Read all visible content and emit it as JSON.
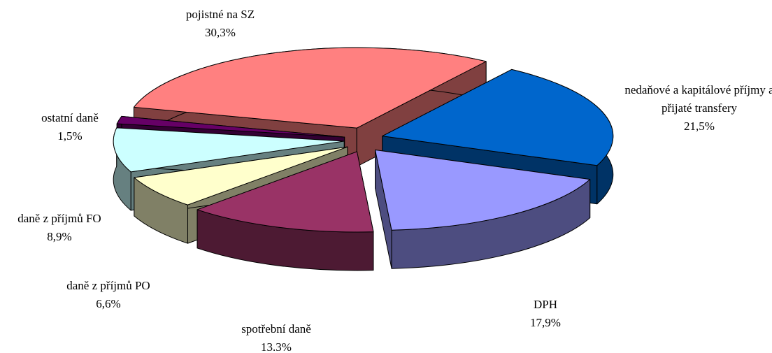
{
  "chart_data": {
    "type": "pie",
    "categories": [
      "pojistné na SZ",
      "nedaňové a kapitálové příjmy a přijaté transfery",
      "DPH",
      "spotřební daně",
      "daně z příjmů PO",
      "daně z příjmů FO",
      "ostatní daně"
    ],
    "values": [
      30.3,
      21.5,
      17.9,
      13.3,
      6.6,
      8.9,
      1.5
    ],
    "value_labels": [
      "30,3%",
      "21,5%",
      "17,9%",
      "13.3%",
      "6,6%",
      "8,9%",
      "1,5%"
    ],
    "colors": [
      "#ff8080",
      "#0066cc",
      "#9999ff",
      "#993366",
      "#ffffcc",
      "#ccffff",
      "#660066"
    ]
  }
}
